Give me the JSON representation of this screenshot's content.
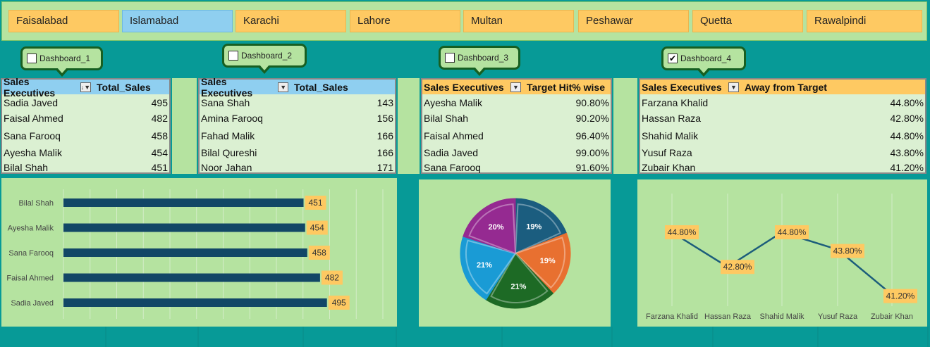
{
  "slicer": {
    "items": [
      {
        "label": "Faisalabad",
        "selected": false
      },
      {
        "label": "Islamabad",
        "selected": true
      },
      {
        "label": "Karachi",
        "selected": false
      },
      {
        "label": "Lahore",
        "selected": false
      },
      {
        "label": "Multan",
        "selected": false
      },
      {
        "label": "Peshawar",
        "selected": false
      },
      {
        "label": "Quetta",
        "selected": false
      },
      {
        "label": "Rawalpindi",
        "selected": false
      }
    ]
  },
  "dashboards": [
    {
      "label": "Dashboard_1",
      "checked": false
    },
    {
      "label": "Dashboard_2",
      "checked": false
    },
    {
      "label": "Dashboard_3",
      "checked": false
    },
    {
      "label": "Dashboard_4",
      "checked": true,
      "check_mark": "✔"
    }
  ],
  "tables": [
    {
      "col1": "Sales Executives",
      "col2": "Total_Sales",
      "filter_glyph": "↓▼",
      "rows": [
        {
          "name": "Sadia Javed",
          "value": "495"
        },
        {
          "name": "Faisal Ahmed",
          "value": "482"
        },
        {
          "name": "Sana Farooq",
          "value": "458"
        },
        {
          "name": "Ayesha Malik",
          "value": "454"
        },
        {
          "name": "Bilal Shah",
          "value": "451"
        }
      ]
    },
    {
      "col1": "Sales Executives",
      "col2": "Total_Sales",
      "filter_glyph": "▼",
      "rows": [
        {
          "name": "Sana Shah",
          "value": "143"
        },
        {
          "name": "Amina Farooq",
          "value": "156"
        },
        {
          "name": "Fahad Malik",
          "value": "166"
        },
        {
          "name": "Bilal Qureshi",
          "value": "166"
        },
        {
          "name": "Noor Jahan",
          "value": "171"
        }
      ]
    },
    {
      "col1": "Sales Executives",
      "col2": "Target Hit% wise",
      "filter_glyph": "▼",
      "rows": [
        {
          "name": "Ayesha Malik",
          "value": "90.80%"
        },
        {
          "name": "Bilal Shah",
          "value": "90.20%"
        },
        {
          "name": "Faisal Ahmed",
          "value": "96.40%"
        },
        {
          "name": "Sadia Javed",
          "value": "99.00%"
        },
        {
          "name": "Sana Farooq",
          "value": "91.60%"
        }
      ]
    },
    {
      "col1": "Sales Executives",
      "col2": "Away from Target",
      "filter_glyph": "▼",
      "rows": [
        {
          "name": "Farzana Khalid",
          "value": "44.80%"
        },
        {
          "name": "Hassan Raza",
          "value": "42.80%"
        },
        {
          "name": "Shahid Malik",
          "value": "44.80%"
        },
        {
          "name": "Yusuf Raza",
          "value": "43.80%"
        },
        {
          "name": "Zubair Khan",
          "value": "41.20%"
        }
      ]
    }
  ],
  "colors": {
    "bar": "#124766",
    "label_bg": "#fec962",
    "line": "#1c5d7b",
    "pie": [
      "#1b5d7f",
      "#e87030",
      "#1d6a25",
      "#1a9bd5",
      "#952a91"
    ]
  },
  "chart_data": [
    {
      "type": "bar",
      "orientation": "horizontal",
      "categories": [
        "Bilal Shah",
        "Ayesha Malik",
        "Sana Farooq",
        "Faisal Ahmed",
        "Sadia Javed"
      ],
      "values": [
        451,
        454,
        458,
        482,
        495
      ],
      "labels": [
        "451",
        "454",
        "458",
        "482",
        "495"
      ],
      "xlim": [
        0,
        600
      ],
      "grid": true
    },
    {
      "type": "pie",
      "values": [
        19,
        19,
        21,
        21,
        20
      ],
      "labels": [
        "19%",
        "19%",
        "21%",
        "21%",
        "20%"
      ]
    },
    {
      "type": "line",
      "categories": [
        "Farzana Khalid",
        "Hassan Raza",
        "Shahid Malik",
        "Yusuf Raza",
        "Zubair Khan"
      ],
      "values": [
        44.8,
        42.8,
        44.8,
        43.8,
        41.2
      ],
      "labels": [
        "44.80%",
        "42.80%",
        "44.80%",
        "43.80%",
        "41.20%"
      ],
      "grid": true
    }
  ]
}
